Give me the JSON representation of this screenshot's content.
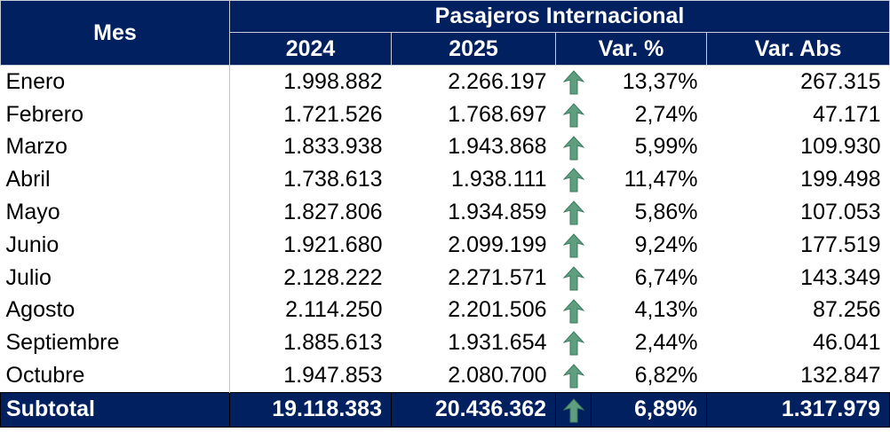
{
  "header": {
    "mes": "Mes",
    "group": "Pasajeros Internacional",
    "y2024": "2024",
    "y2025": "2025",
    "var_pct": "Var. %",
    "var_abs": "Var. Abs"
  },
  "arrow_icon": "arrow-up",
  "arrow_color": "#5f9f80",
  "header_color": "#002060",
  "rows": [
    {
      "mes": "Enero",
      "y2024": "1.998.882",
      "y2025": "2.266.197",
      "var_pct": "13,37%",
      "var_abs": "267.315"
    },
    {
      "mes": "Febrero",
      "y2024": "1.721.526",
      "y2025": "1.768.697",
      "var_pct": "2,74%",
      "var_abs": "47.171"
    },
    {
      "mes": "Marzo",
      "y2024": "1.833.938",
      "y2025": "1.943.868",
      "var_pct": "5,99%",
      "var_abs": "109.930"
    },
    {
      "mes": "Abril",
      "y2024": "1.738.613",
      "y2025": "1.938.111",
      "var_pct": "11,47%",
      "var_abs": "199.498"
    },
    {
      "mes": "Mayo",
      "y2024": "1.827.806",
      "y2025": "1.934.859",
      "var_pct": "5,86%",
      "var_abs": "107.053"
    },
    {
      "mes": "Junio",
      "y2024": "1.921.680",
      "y2025": "2.099.199",
      "var_pct": "9,24%",
      "var_abs": "177.519"
    },
    {
      "mes": "Julio",
      "y2024": "2.128.222",
      "y2025": "2.271.571",
      "var_pct": "6,74%",
      "var_abs": "143.349"
    },
    {
      "mes": "Agosto",
      "y2024": "2.114.250",
      "y2025": "2.201.506",
      "var_pct": "4,13%",
      "var_abs": "87.256"
    },
    {
      "mes": "Septiembre",
      "y2024": "1.885.613",
      "y2025": "1.931.654",
      "var_pct": "2,44%",
      "var_abs": "46.041"
    },
    {
      "mes": "Octubre",
      "y2024": "1.947.853",
      "y2025": "2.080.700",
      "var_pct": "6,82%",
      "var_abs": "132.847"
    }
  ],
  "subtotal": {
    "mes": "Subtotal",
    "y2024": "19.118.383",
    "y2025": "20.436.362",
    "var_pct": "6,89%",
    "var_abs": "1.317.979"
  }
}
